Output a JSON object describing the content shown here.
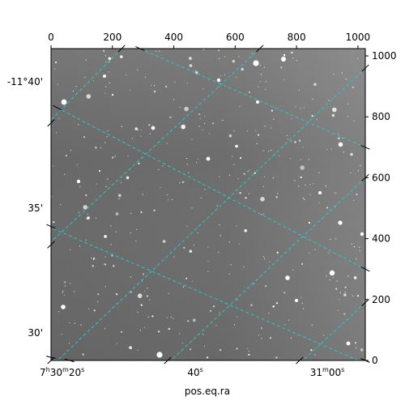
{
  "chart_data": {
    "type": "image",
    "title": "",
    "xlabel": "pos.eq.ra",
    "ylabel": "",
    "pixel_axes": {
      "x_range": [
        0,
        1024
      ],
      "y_range": [
        0,
        1024
      ],
      "x_ticks": [
        0,
        200,
        400,
        600,
        800,
        1000
      ],
      "y_ticks": [
        0,
        200,
        400,
        600,
        800,
        1000
      ],
      "x_tick_labels": [
        "0",
        "200",
        "400",
        "600",
        "800",
        "1000"
      ],
      "y_tick_labels": [
        "0",
        "200",
        "400",
        "600",
        "800",
        "1000"
      ]
    },
    "ra_ticks": [
      {
        "label_main": "7",
        "sup1": "h",
        "mid": "30",
        "sup2": "m",
        "end": "20",
        "sup3": "s",
        "x": 36
      },
      {
        "label_main": "40",
        "sup1": "s",
        "mid": "",
        "sup2": "",
        "end": "",
        "sup3": "",
        "x": 470
      },
      {
        "label_main": "31",
        "sup1": "m",
        "mid": "00",
        "sup2": "s",
        "end": "",
        "sup3": "",
        "x": 900
      }
    ],
    "dec_ticks": [
      {
        "label": "-11°40'",
        "y": 915
      },
      {
        "label": "35'",
        "y": 500
      },
      {
        "label": "30'",
        "y": 90
      }
    ],
    "grid": true,
    "grid_color": "#22cccc",
    "colormap": "grayscale",
    "grid_lines_ra": [
      {
        "x0": 230,
        "y0": 1024,
        "x1": -10,
        "y1": 780
      },
      {
        "x0": 680,
        "y0": 1024,
        "x1": -10,
        "y1": 380
      },
      {
        "x0": 1024,
        "y0": 960,
        "x1": -10,
        "y1": -30
      },
      {
        "x0": 1024,
        "y0": 600,
        "x1": 380,
        "y1": -10
      },
      {
        "x0": 1024,
        "y0": 190,
        "x1": 810,
        "y1": -10
      }
    ],
    "grid_lines_dec": [
      {
        "x0": 290,
        "y0": 1024,
        "x1": 1024,
        "y1": 700
      },
      {
        "x0": 20,
        "y0": 830,
        "x1": 1024,
        "y1": 300
      },
      {
        "x0": -10,
        "y0": 440,
        "x1": 1024,
        "y1": -10
      },
      {
        "x0": -10,
        "y0": 10,
        "x1": 60,
        "y1": -10
      }
    ]
  }
}
